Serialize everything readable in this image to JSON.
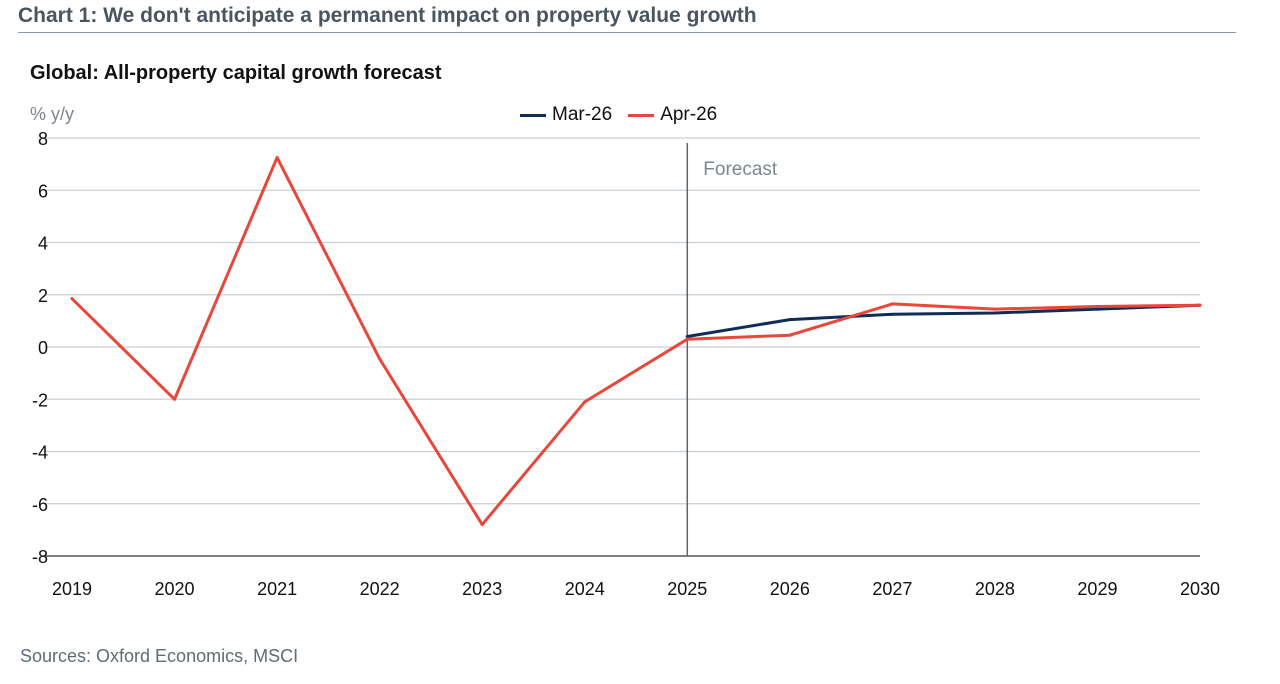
{
  "header": {
    "title": "Chart 1: We don't anticipate a permanent impact on property value growth"
  },
  "chart_data": {
    "type": "line",
    "title": "Global: All-property capital growth forecast",
    "ylabel": "% y/y",
    "xlabel": "",
    "ylim": [
      -8,
      8
    ],
    "yticks": [
      8,
      6,
      4,
      2,
      0,
      -2,
      -4,
      -6,
      -8
    ],
    "ytick_labels": [
      "8",
      "6",
      "4",
      "2",
      "0",
      "-2",
      "-4",
      "-6",
      "-8"
    ],
    "x": [
      2019,
      2020,
      2021,
      2022,
      2023,
      2024,
      2025,
      2026,
      2027,
      2028,
      2029,
      2030
    ],
    "xtick_labels": [
      "2019",
      "2020",
      "2021",
      "2022",
      "2023",
      "2024",
      "2025",
      "2026",
      "2027",
      "2028",
      "2029",
      "2030"
    ],
    "forecast_start": 2025,
    "forecast_label": "Forecast",
    "legend_position": "top-center",
    "series": [
      {
        "name": "Mar-26",
        "color": "#0f2d57",
        "x": [
          2025,
          2026,
          2027,
          2028,
          2029,
          2030
        ],
        "values": [
          0.4,
          1.05,
          1.25,
          1.3,
          1.45,
          1.6
        ]
      },
      {
        "name": "Apr-26",
        "color": "#e8473b",
        "x": [
          2019,
          2020,
          2021,
          2022,
          2023,
          2024,
          2025,
          2026,
          2027,
          2028,
          2029,
          2030
        ],
        "values": [
          1.85,
          -2.0,
          7.25,
          -0.45,
          -6.8,
          -2.1,
          0.3,
          0.45,
          1.65,
          1.45,
          1.55,
          1.6
        ]
      }
    ]
  },
  "source": "Sources: Oxford Economics, MSCI"
}
